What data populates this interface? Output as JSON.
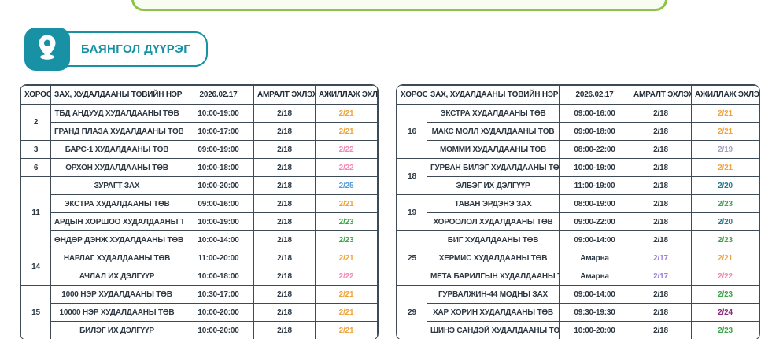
{
  "banner": {
    "border_color": "#8CC348"
  },
  "district_badge": {
    "title": "БАЯНГОЛ ДҮҮРЭГ",
    "accent_color": "#1991A5",
    "icon": "location-pin"
  },
  "columns": [
    "ХОРОО",
    "ЗАХ, ХУДАЛДААНЫ ТӨВИЙН НЭР",
    "2026.02.17",
    "АМРАЛТ ЭХЛЭХ",
    "АЖИЛЛАЖ ЭХЛЭХ"
  ],
  "colors": {
    "default": "#2E3944",
    "orange": "#F0A43C",
    "pink": "#F287B4",
    "blue": "#5B9BD5",
    "green": "#3DA54A",
    "gray": "#A49FBE",
    "teal": "#27798F",
    "purple": "#9B84D8",
    "magenta": "#8A2B7D"
  },
  "tables": {
    "left": {
      "groups": [
        {
          "khoroo": "2",
          "rows": [
            {
              "name": "ТБД АНДУУД ХУДАЛДААНЫ ТӨВ",
              "hours": "10:00-19:00",
              "rest": "2/18",
              "rest_color": "default",
              "start": "2/21",
              "start_color": "orange"
            },
            {
              "name": "ГРАНД ПЛАЗА ХУДАЛДААНЫ ТӨВ",
              "hours": "10:00-17:00",
              "rest": "2/18",
              "rest_color": "default",
              "start": "2/21",
              "start_color": "orange"
            }
          ]
        },
        {
          "khoroo": "3",
          "rows": [
            {
              "name": "БАРС-1 ХУДАЛДААНЫ ТӨВ",
              "hours": "09:00-19:00",
              "rest": "2/18",
              "rest_color": "default",
              "start": "2/22",
              "start_color": "pink"
            }
          ]
        },
        {
          "khoroo": "6",
          "rows": [
            {
              "name": "ОРХОН ХУДАЛДААНЫ ТӨВ",
              "hours": "10:00-18:00",
              "rest": "2/18",
              "rest_color": "default",
              "start": "2/22",
              "start_color": "pink"
            }
          ]
        },
        {
          "khoroo": "11",
          "rows": [
            {
              "name": "ЗУРАГТ ЗАХ",
              "hours": "10:00-20:00",
              "rest": "2/18",
              "rest_color": "default",
              "start": "2/25",
              "start_color": "blue"
            },
            {
              "name": "ЭКСТРА ХУДАЛДААНЫ ТӨВ",
              "hours": "09:00-16:00",
              "rest": "2/18",
              "rest_color": "default",
              "start": "2/21",
              "start_color": "orange"
            },
            {
              "name": "АРДЫН ХОРШОО ХУДАЛДААНЫ ТӨВ",
              "hours": "10:00-19:00",
              "rest": "2/18",
              "rest_color": "default",
              "start": "2/23",
              "start_color": "green"
            },
            {
              "name": "ӨНДӨР ДЭНЖ ХУДАЛДААНЫ ТӨВ",
              "hours": "10:00-14:00",
              "rest": "2/18",
              "rest_color": "default",
              "start": "2/23",
              "start_color": "green"
            }
          ]
        },
        {
          "khoroo": "14",
          "rows": [
            {
              "name": "НАРЛАГ ХУДАЛДААНЫ ТӨВ",
              "hours": "11:00-20:00",
              "rest": "2/18",
              "rest_color": "default",
              "start": "2/21",
              "start_color": "orange"
            },
            {
              "name": "АЧЛАЛ ИХ ДЭЛГҮҮР",
              "hours": "10:00-18:00",
              "rest": "2/18",
              "rest_color": "default",
              "start": "2/22",
              "start_color": "pink"
            }
          ]
        },
        {
          "khoroo": "15",
          "rows": [
            {
              "name": "1000 НЭР ХУДАЛДААНЫ ТӨВ",
              "hours": "10:30-17:00",
              "rest": "2/18",
              "rest_color": "default",
              "start": "2/21",
              "start_color": "orange"
            },
            {
              "name": "10000 НЭР ХУДАЛДААНЫ ТӨВ",
              "hours": "10:00-20:00",
              "rest": "2/18",
              "rest_color": "default",
              "start": "2/21",
              "start_color": "orange"
            },
            {
              "name": "БИЛЭГ ИХ ДЭЛГҮҮР",
              "hours": "10:00-20:00",
              "rest": "2/18",
              "rest_color": "default",
              "start": "2/21",
              "start_color": "orange"
            }
          ]
        }
      ]
    },
    "right": {
      "groups": [
        {
          "khoroo": "16",
          "rows": [
            {
              "name": "ЭКСТРА ХУДАЛДААНЫ ТӨВ",
              "hours": "09:00-16:00",
              "rest": "2/18",
              "rest_color": "default",
              "start": "2/21",
              "start_color": "orange"
            },
            {
              "name": "МАКС МОЛЛ ХУДАЛДААНЫ ТӨВ",
              "hours": "09:00-18:00",
              "rest": "2/18",
              "rest_color": "default",
              "start": "2/21",
              "start_color": "orange"
            },
            {
              "name": "МОММИ ХУДАЛДААНЫ ТӨВ",
              "hours": "08:00-22:00",
              "rest": "2/18",
              "rest_color": "default",
              "start": "2/19",
              "start_color": "gray"
            }
          ]
        },
        {
          "khoroo": "18",
          "rows": [
            {
              "name": "ГУРВАН БИЛЭГ ХУДАЛДААНЫ ТӨВ",
              "hours": "10:00-19:00",
              "rest": "2/18",
              "rest_color": "default",
              "start": "2/21",
              "start_color": "orange"
            },
            {
              "name": "ЭЛБЭГ ИХ ДЭЛГҮҮР",
              "hours": "11:00-19:00",
              "rest": "2/18",
              "rest_color": "default",
              "start": "2/20",
              "start_color": "teal"
            }
          ]
        },
        {
          "khoroo": "19",
          "rows": [
            {
              "name": "ТАВАН ЭРДЭНЭ ЗАХ",
              "hours": "08:00-19:00",
              "rest": "2/18",
              "rest_color": "default",
              "start": "2/23",
              "start_color": "green"
            },
            {
              "name": "ХОРООЛОЛ ХУДАЛДААНЫ ТӨВ",
              "hours": "09:00-22:00",
              "rest": "2/18",
              "rest_color": "default",
              "start": "2/20",
              "start_color": "teal"
            }
          ]
        },
        {
          "khoroo": "25",
          "rows": [
            {
              "name": "БИГ ХУДАЛДААНЫ ТӨВ",
              "hours": "09:00-14:00",
              "rest": "2/18",
              "rest_color": "default",
              "start": "2/23",
              "start_color": "green"
            },
            {
              "name": "ХЕРМИС ХУДАЛДААНЫ ТӨВ",
              "hours": "Амарна",
              "rest": "2/17",
              "rest_color": "purple",
              "start": "2/21",
              "start_color": "orange"
            },
            {
              "name": "МЕТА БАРИЛГЫН ХУДАЛДААНЫ ТӨВ",
              "hours": "Амарна",
              "rest": "2/17",
              "rest_color": "purple",
              "start": "2/22",
              "start_color": "pink"
            }
          ]
        },
        {
          "khoroo": "29",
          "rows": [
            {
              "name": "ГУРВАЛЖИН-44 МОДНЫ ЗАХ",
              "hours": "09:00-14:00",
              "rest": "2/18",
              "rest_color": "default",
              "start": "2/23",
              "start_color": "green"
            },
            {
              "name": "ХАР ХОРИН ХУДАЛДААНЫ ТӨВ",
              "hours": "09:30-19:30",
              "rest": "2/18",
              "rest_color": "default",
              "start": "2/24",
              "start_color": "magenta"
            },
            {
              "name": "ШИНЭ САНДЭЙ ХУДАЛДААНЫ ТӨВ",
              "hours": "10:00-20:00",
              "rest": "2/18",
              "rest_color": "default",
              "start": "2/23",
              "start_color": "green"
            }
          ]
        }
      ]
    }
  }
}
